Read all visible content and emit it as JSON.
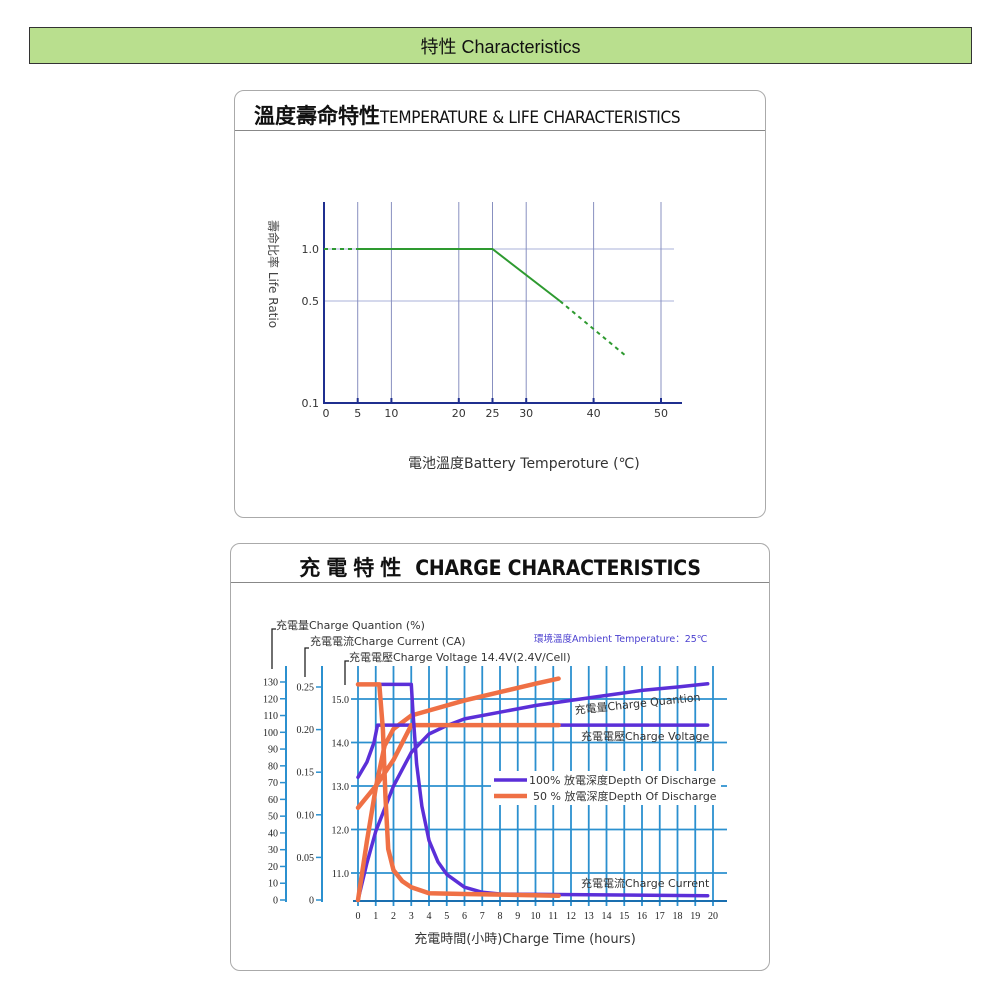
{
  "banner": {
    "title": "特性  Characteristics"
  },
  "temp_panel": {
    "title_zh": "溫度壽命特性",
    "title_en": "TEMPERATURE & LIFE CHARACTERISTICS"
  },
  "charge_panel": {
    "title_zh": "充電特性",
    "title_en": "CHARGE CHARACTERISTICS"
  },
  "chart_data": [
    {
      "type": "line",
      "title": "溫度壽命特性TEMPERATURE & LIFE CHARACTERISTICS",
      "xlabel": "電池溫度Battery Temperoture (℃)",
      "ylabel": "壽命比率 Life Ratio",
      "x_ticks": [
        "0",
        "5",
        "10",
        "20",
        "25",
        "30",
        "40",
        "50"
      ],
      "x_tick_values": [
        0,
        5,
        10,
        20,
        25,
        30,
        40,
        50
      ],
      "y_ticks": [
        "0.1",
        "0.5",
        "1.0"
      ],
      "y_tick_values": [
        0.1,
        0.5,
        1.0
      ],
      "xlim": [
        0,
        52
      ],
      "grid": true,
      "color": "#2e9a30",
      "series": [
        {
          "style": "solid",
          "points": [
            [
              5,
              1.0
            ],
            [
              25,
              1.0
            ],
            [
              35,
              0.5
            ]
          ]
        },
        {
          "style": "dashed",
          "points": [
            [
              0,
              1.0
            ],
            [
              5,
              1.0
            ]
          ]
        },
        {
          "style": "dashed",
          "points": [
            [
              35,
              0.5
            ],
            [
              45,
              0.28
            ]
          ]
        }
      ]
    },
    {
      "type": "line",
      "title": "充電特性 CHARGE CHARACTERISTICS",
      "xlabel": "充電時間(小時)Charge Time (hours)",
      "x_ticks": [
        "0",
        "1",
        "2",
        "3",
        "4",
        "5",
        "6",
        "7",
        "8",
        "9",
        "10",
        "11",
        "12",
        "13",
        "14",
        "15",
        "16",
        "17",
        "18",
        "19",
        "20"
      ],
      "xlim": [
        0,
        20
      ],
      "axes": {
        "quantity": {
          "label": "充電量Charge Quantion (%)",
          "ticks": [
            "0",
            "10",
            "20",
            "30",
            "40",
            "50",
            "60",
            "70",
            "80",
            "90",
            "100",
            "110",
            "120",
            "130"
          ],
          "range": [
            0,
            130
          ]
        },
        "current": {
          "label": "充電電流Charge Current (CA)",
          "ticks": [
            "0",
            "0.05",
            "0.10",
            "0.15",
            "0.20",
            "0.25"
          ],
          "range": [
            0,
            0.25
          ]
        },
        "voltage": {
          "label": "充電電壓Charge Voltage 14.4V(2.4V/Cell)",
          "ticks": [
            "11.0",
            "12.0",
            "13.0",
            "14.0",
            "15.0"
          ],
          "range": [
            10.4,
            15.5
          ]
        }
      },
      "annotation": "環境溫度Ambient Temperature：25℃",
      "curve_labels": {
        "quantity": "充電量Charge Quantion",
        "voltage": "充電電壓Charge Voltage",
        "current": "充電電流Charge Current"
      },
      "legend": [
        {
          "name": "100% 放電深度Depth Of Discharge",
          "color": "#5b2fd8"
        },
        {
          "name": "50 % 放電深度Depth Of Discharge",
          "color": "#ef7045"
        }
      ],
      "legend_position": "center-right",
      "grid": true,
      "grid_color": "#2b90cf",
      "series": [
        {
          "dod": "100%",
          "kind": "voltage",
          "axis": "voltage",
          "points": [
            [
              0,
              13.2
            ],
            [
              0.5,
              13.55
            ],
            [
              0.9,
              14.0
            ],
            [
              1.1,
              14.4
            ],
            [
              19.7,
              14.4
            ]
          ]
        },
        {
          "dod": "50%",
          "kind": "voltage",
          "axis": "voltage",
          "points": [
            [
              0,
              12.5
            ],
            [
              1,
              13.0
            ],
            [
              2,
              13.6
            ],
            [
              3,
              14.4
            ],
            [
              11.3,
              14.4
            ]
          ]
        },
        {
          "dod": "100%",
          "kind": "current",
          "axis": "current",
          "points": [
            [
              0,
              0.253
            ],
            [
              3,
              0.253
            ],
            [
              3.1,
              0.22
            ],
            [
              3.3,
              0.16
            ],
            [
              3.6,
              0.11
            ],
            [
              4,
              0.07
            ],
            [
              4.5,
              0.045
            ],
            [
              5,
              0.03
            ],
            [
              6,
              0.015
            ],
            [
              7,
              0.009
            ],
            [
              8,
              0.007
            ],
            [
              19.7,
              0.005
            ]
          ]
        },
        {
          "dod": "50%",
          "kind": "current",
          "axis": "current",
          "points": [
            [
              0,
              0.253
            ],
            [
              1.2,
              0.253
            ],
            [
              1.4,
              0.2
            ],
            [
              1.55,
              0.12
            ],
            [
              1.7,
              0.06
            ],
            [
              2,
              0.035
            ],
            [
              2.5,
              0.022
            ],
            [
              3,
              0.015
            ],
            [
              4,
              0.008
            ],
            [
              6,
              0.007
            ],
            [
              11.3,
              0.005
            ]
          ]
        },
        {
          "dod": "100%",
          "kind": "quantity",
          "axis": "quantity",
          "points": [
            [
              0,
              0
            ],
            [
              0.5,
              22
            ],
            [
              1,
              41
            ],
            [
              2,
              68
            ],
            [
              3,
              88
            ],
            [
              4,
              99
            ],
            [
              5,
              104
            ],
            [
              6,
              108
            ],
            [
              8,
              112
            ],
            [
              10,
              116
            ],
            [
              12,
              119
            ],
            [
              14,
              122
            ],
            [
              16,
              125
            ],
            [
              18,
              127
            ],
            [
              19.7,
              129
            ]
          ]
        },
        {
          "dod": "50%",
          "kind": "quantity",
          "axis": "quantity",
          "points": [
            [
              0,
              0
            ],
            [
              0.5,
              35
            ],
            [
              1,
              67
            ],
            [
              1.5,
              92
            ],
            [
              2,
              102
            ],
            [
              3,
              110
            ],
            [
              4,
              113
            ],
            [
              6,
              119
            ],
            [
              8,
              124
            ],
            [
              10,
              129
            ],
            [
              11.3,
              132
            ]
          ]
        }
      ]
    }
  ]
}
